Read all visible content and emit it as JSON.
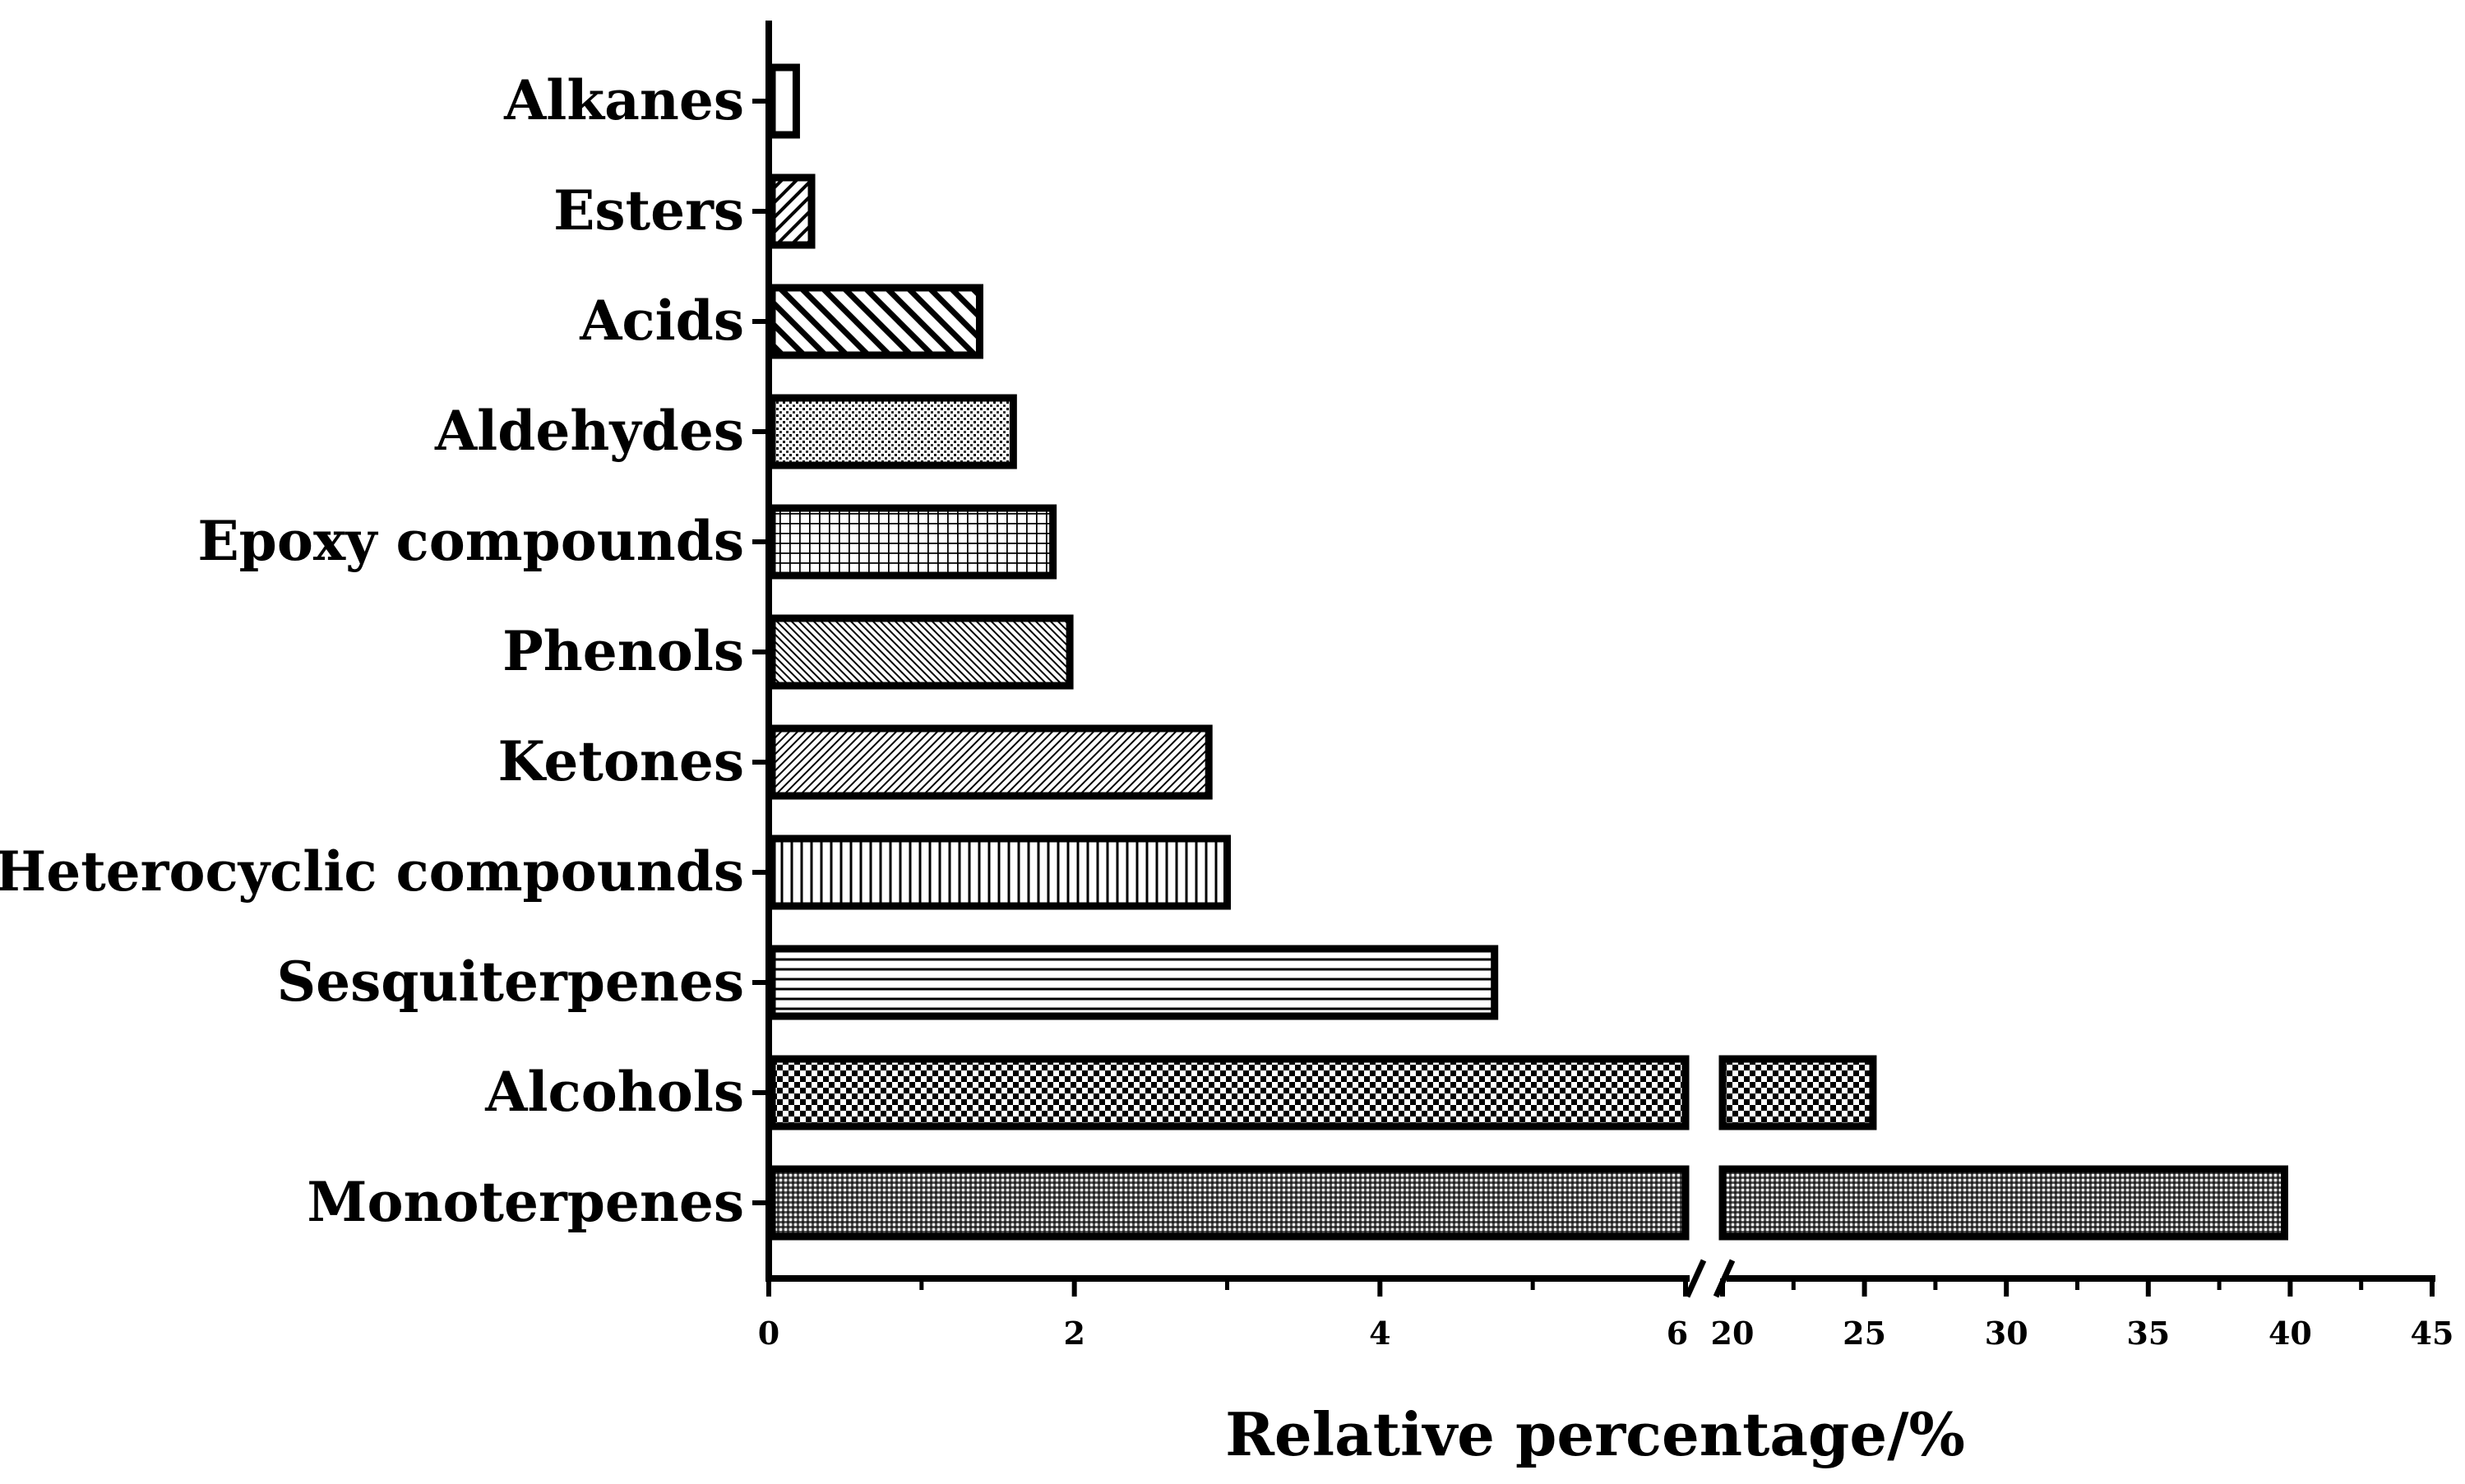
{
  "chart_data": {
    "type": "bar",
    "orientation": "horizontal",
    "title": "",
    "xlabel": "Relative percentage/%",
    "ylabel": "",
    "categories": [
      "Alkanes",
      "Esters",
      "Acids",
      "Aldehydes",
      "Epoxy compounds",
      "Phenols",
      "Ketones",
      "Heterocyclic compounds",
      "Sesquiterpenes",
      "Alcohols",
      "Monoterpenes"
    ],
    "values": [
      0.18,
      0.28,
      1.38,
      1.6,
      1.86,
      1.97,
      2.88,
      3.0,
      4.75,
      25.3,
      39.8
    ],
    "patterns": [
      "solid-white",
      "diagonal-up",
      "diagonal-down-heavy",
      "dots-fine",
      "grid",
      "diagonal-down-fine",
      "diagonal-up-fine",
      "vertical-lines",
      "horizontal-lines",
      "checker",
      "dense-dots"
    ],
    "axis_break": {
      "from": 6,
      "to": 20
    },
    "xlim_segments": [
      [
        0,
        6
      ],
      [
        20,
        45
      ]
    ],
    "ticks_segment1": [
      0,
      2,
      4,
      6
    ],
    "ticks_segment2": [
      20,
      25,
      30,
      35,
      40,
      45
    ],
    "tick_labels_segment1": [
      "0",
      "2",
      "4",
      "6"
    ],
    "tick_labels_segment2": [
      "20",
      "25",
      "30",
      "35",
      "40",
      "45"
    ],
    "legend": "none",
    "grid": false
  }
}
